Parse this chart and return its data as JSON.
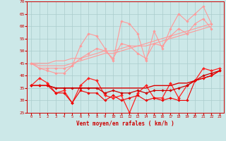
{
  "xlabel": "Vent moyen/en rafales ( km/h )",
  "xlim": [
    -0.5,
    23.5
  ],
  "ylim": [
    25,
    70
  ],
  "yticks": [
    25,
    30,
    35,
    40,
    45,
    50,
    55,
    60,
    65,
    70
  ],
  "xticks": [
    0,
    1,
    2,
    3,
    4,
    5,
    6,
    7,
    8,
    9,
    10,
    11,
    12,
    13,
    14,
    15,
    16,
    17,
    18,
    19,
    20,
    21,
    22,
    23
  ],
  "background_color": "#cce8e8",
  "grid_color": "#aacccc",
  "series": [
    {
      "label": "rafales_max",
      "color": "#ff9999",
      "lw": 0.8,
      "marker": "D",
      "markersize": 1.8,
      "data": [
        45,
        43,
        42,
        41,
        41,
        44,
        52,
        57,
        56,
        51,
        46,
        62,
        61,
        57,
        46,
        58,
        51,
        59,
        65,
        62,
        65,
        68,
        61,
        null
      ]
    },
    {
      "label": "rafales_moy",
      "color": "#ff9999",
      "lw": 0.8,
      "marker": "D",
      "markersize": 1.8,
      "data": [
        45,
        43,
        43,
        43,
        43,
        44,
        47,
        49,
        51,
        50,
        47,
        53,
        52,
        49,
        47,
        53,
        52,
        56,
        59,
        57,
        61,
        63,
        59,
        null
      ]
    },
    {
      "label": "line_trend1",
      "color": "#ff9999",
      "lw": 0.8,
      "marker": null,
      "markersize": 0,
      "data": [
        45,
        44,
        44,
        44,
        44,
        45,
        46,
        47,
        48,
        49,
        49,
        50,
        51,
        52,
        52,
        53,
        54,
        55,
        56,
        57,
        58,
        59,
        60,
        null
      ]
    },
    {
      "label": "line_trend2",
      "color": "#ff9999",
      "lw": 0.8,
      "marker": null,
      "markersize": 0,
      "data": [
        45,
        45,
        45,
        46,
        46,
        47,
        47,
        48,
        49,
        50,
        50,
        51,
        52,
        52,
        53,
        54,
        55,
        56,
        57,
        58,
        59,
        60,
        61,
        null
      ]
    },
    {
      "label": "vent_max",
      "color": "#ff2222",
      "lw": 0.9,
      "marker": "D",
      "markersize": 2.0,
      "data": [
        36,
        39,
        37,
        33,
        34,
        29,
        36,
        39,
        38,
        32,
        31,
        32,
        25,
        33,
        36,
        31,
        31,
        37,
        31,
        36,
        38,
        43,
        42,
        43
      ]
    },
    {
      "label": "vent_moy_smooth",
      "color": "#dd0000",
      "lw": 1.0,
      "marker": null,
      "markersize": 0,
      "data": [
        36,
        36,
        36,
        35,
        35,
        35,
        35,
        35,
        35,
        35,
        35,
        35,
        35,
        35,
        35,
        36,
        36,
        36,
        37,
        37,
        38,
        39,
        40,
        42
      ]
    },
    {
      "label": "vent_moy",
      "color": "#cc0000",
      "lw": 0.9,
      "marker": "D",
      "markersize": 1.8,
      "data": [
        36,
        36,
        36,
        35,
        35,
        35,
        35,
        35,
        35,
        33,
        34,
        33,
        33,
        34,
        33,
        34,
        34,
        34,
        35,
        36,
        38,
        40,
        41,
        42
      ]
    },
    {
      "label": "vent_min",
      "color": "#ee0000",
      "lw": 0.8,
      "marker": "D",
      "markersize": 1.8,
      "data": [
        36,
        36,
        36,
        33,
        33,
        29,
        34,
        33,
        33,
        30,
        32,
        30,
        31,
        32,
        30,
        31,
        30,
        31,
        30,
        30,
        38,
        39,
        40,
        42
      ]
    }
  ]
}
